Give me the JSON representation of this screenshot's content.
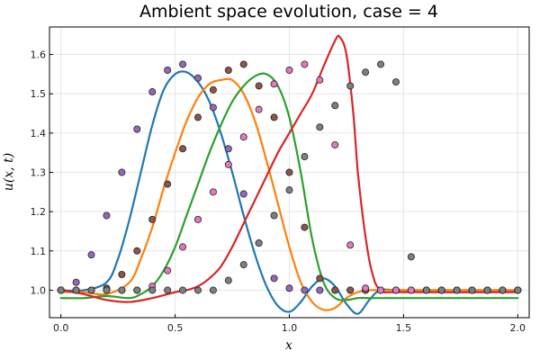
{
  "chart_data": {
    "type": "line",
    "title": "Ambient space evolution, case = 4",
    "xlabel": "x",
    "ylabel": "u(x, t)",
    "xlim": [
      -0.05,
      2.05
    ],
    "ylim": [
      0.93,
      1.67
    ],
    "xticks": [
      "0.0",
      "0.5",
      "1.0",
      "1.5",
      "2.0"
    ],
    "yticks": [
      "1.0",
      "1.1",
      "1.2",
      "1.3",
      "1.4",
      "1.5",
      "1.6"
    ],
    "grid": true,
    "legend": "none",
    "lines": [
      {
        "color": "#1f77b4",
        "x": [
          0.0,
          0.1,
          0.2,
          0.25,
          0.3,
          0.35,
          0.4,
          0.45,
          0.5,
          0.55,
          0.6,
          0.65,
          0.7,
          0.75,
          0.8,
          0.85,
          0.9,
          0.95,
          1.0,
          1.05,
          1.1,
          1.15,
          1.2,
          1.25,
          1.3,
          1.35,
          1.4,
          1.5,
          2.0
        ],
        "y": [
          1.0,
          1.0,
          1.02,
          1.08,
          1.18,
          1.3,
          1.42,
          1.51,
          1.55,
          1.555,
          1.53,
          1.48,
          1.4,
          1.3,
          1.19,
          1.09,
          1.01,
          0.96,
          0.945,
          0.97,
          1.01,
          1.03,
          1.01,
          0.965,
          0.94,
          0.975,
          1.0,
          1.0,
          1.0
        ]
      },
      {
        "color": "#ff7f0e",
        "x": [
          0.0,
          0.1,
          0.2,
          0.3,
          0.35,
          0.4,
          0.45,
          0.5,
          0.55,
          0.6,
          0.65,
          0.7,
          0.75,
          0.8,
          0.85,
          0.9,
          0.95,
          1.0,
          1.05,
          1.1,
          1.15,
          1.2,
          1.25,
          1.3,
          1.35,
          1.4,
          1.5,
          2.0
        ],
        "y": [
          0.995,
          0.995,
          0.99,
          1.02,
          1.08,
          1.16,
          1.26,
          1.35,
          1.43,
          1.49,
          1.525,
          1.535,
          1.535,
          1.5,
          1.43,
          1.33,
          1.22,
          1.11,
          1.02,
          0.97,
          0.95,
          0.955,
          0.98,
          0.995,
          1.0,
          1.0,
          1.0,
          1.0
        ]
      },
      {
        "color": "#2ca02c",
        "x": [
          0.0,
          0.1,
          0.2,
          0.3,
          0.35,
          0.4,
          0.45,
          0.5,
          0.55,
          0.6,
          0.65,
          0.7,
          0.75,
          0.8,
          0.85,
          0.9,
          0.95,
          1.0,
          1.05,
          1.1,
          1.15,
          1.2,
          1.25,
          1.3,
          1.35,
          1.4,
          1.5,
          2.0
        ],
        "y": [
          0.98,
          0.98,
          0.985,
          0.98,
          0.99,
          1.01,
          1.05,
          1.11,
          1.19,
          1.27,
          1.35,
          1.42,
          1.48,
          1.52,
          1.545,
          1.55,
          1.52,
          1.44,
          1.3,
          1.13,
          1.02,
          0.98,
          0.975,
          0.98,
          0.98,
          0.98,
          0.98,
          0.98
        ]
      },
      {
        "color": "#d62728",
        "x": [
          0.0,
          0.1,
          0.2,
          0.3,
          0.4,
          0.5,
          0.55,
          0.6,
          0.65,
          0.7,
          0.75,
          0.8,
          0.85,
          0.9,
          0.95,
          1.0,
          1.05,
          1.1,
          1.15,
          1.2,
          1.22,
          1.25,
          1.28,
          1.3,
          1.33,
          1.36,
          1.4,
          1.5,
          2.0
        ],
        "y": [
          1.0,
          0.99,
          0.975,
          0.97,
          0.98,
          0.995,
          1.0,
          1.01,
          1.03,
          1.06,
          1.11,
          1.17,
          1.23,
          1.29,
          1.35,
          1.4,
          1.45,
          1.5,
          1.57,
          1.635,
          1.645,
          1.6,
          1.45,
          1.3,
          1.15,
          1.05,
          1.0,
          0.995,
          0.995
        ]
      }
    ],
    "scatter": [
      {
        "color": "#9467bd",
        "x": [
          0.0,
          0.0667,
          0.1333,
          0.2,
          0.2667,
          0.3333,
          0.4,
          0.4667,
          0.5333,
          0.6,
          0.6667,
          0.7333,
          0.8,
          0.8667,
          0.9333,
          1.0,
          1.0667,
          1.1333,
          1.2,
          1.2667,
          1.3333,
          1.4,
          1.4667,
          1.5333,
          1.6,
          1.6667,
          1.7333,
          1.8,
          1.8667,
          1.9333,
          2.0
        ],
        "y": [
          1.0,
          1.02,
          1.09,
          1.19,
          1.3,
          1.41,
          1.505,
          1.56,
          1.575,
          1.54,
          1.465,
          1.36,
          1.245,
          1.12,
          1.03,
          1.005,
          1.0,
          1.0,
          1.0,
          1.0,
          1.0,
          1.0,
          1.0,
          1.0,
          1.0,
          1.0,
          1.0,
          1.0,
          1.0,
          1.0,
          1.0
        ]
      },
      {
        "color": "#8c564b",
        "x": [
          0.0,
          0.0667,
          0.1333,
          0.2,
          0.2667,
          0.3333,
          0.4,
          0.4667,
          0.5333,
          0.6,
          0.6667,
          0.7333,
          0.8,
          0.8667,
          0.9333,
          1.0,
          1.0667,
          1.1333,
          1.2,
          1.2667,
          1.3333,
          1.4,
          1.4667,
          1.5333,
          1.6,
          1.6667,
          1.7333,
          1.8,
          1.8667,
          1.9333,
          2.0
        ],
        "y": [
          1.0,
          1.0,
          1.0,
          1.005,
          1.04,
          1.1,
          1.18,
          1.27,
          1.36,
          1.44,
          1.51,
          1.56,
          1.575,
          1.52,
          1.44,
          1.3,
          1.16,
          1.03,
          1.0,
          1.0,
          1.0,
          1.0,
          1.0,
          1.0,
          1.0,
          1.0,
          1.0,
          1.0,
          1.0,
          1.0,
          1.0
        ]
      },
      {
        "color": "#e377c2",
        "x": [
          0.0,
          0.0667,
          0.1333,
          0.2,
          0.2667,
          0.3333,
          0.4,
          0.4667,
          0.5333,
          0.6,
          0.6667,
          0.7333,
          0.8,
          0.8667,
          0.9333,
          1.0,
          1.0667,
          1.1333,
          1.2,
          1.2667,
          1.3333,
          1.4,
          1.4667,
          1.5333,
          1.6,
          1.6667,
          1.7333,
          1.8,
          1.8667,
          1.9333,
          2.0
        ],
        "y": [
          1.0,
          1.0,
          1.0,
          1.0,
          1.0,
          1.0,
          1.01,
          1.05,
          1.11,
          1.18,
          1.25,
          1.32,
          1.39,
          1.46,
          1.525,
          1.56,
          1.575,
          1.535,
          1.37,
          1.115,
          1.005,
          1.0,
          1.0,
          1.0,
          1.0,
          1.0,
          1.0,
          1.0,
          1.0,
          1.0,
          1.0
        ]
      },
      {
        "color": "#7f7f7f",
        "x": [
          0.0,
          0.0667,
          0.1333,
          0.2,
          0.2667,
          0.3333,
          0.4,
          0.4667,
          0.5333,
          0.6,
          0.6667,
          0.7333,
          0.8,
          0.8667,
          0.9333,
          1.0,
          1.0667,
          1.1333,
          1.2,
          1.2667,
          1.3333,
          1.4,
          1.4667,
          1.5333,
          1.6,
          1.6667,
          1.7333,
          1.8,
          1.8667,
          1.9333,
          2.0
        ],
        "y": [
          1.0,
          1.0,
          1.0,
          1.0,
          1.0,
          1.0,
          1.0,
          1.0,
          1.0,
          1.0,
          1.0,
          1.025,
          1.065,
          1.12,
          1.19,
          1.255,
          1.34,
          1.415,
          1.47,
          1.52,
          1.555,
          1.575,
          1.53,
          1.085,
          1.0,
          1.0,
          1.0,
          1.0,
          1.0,
          1.0,
          1.0
        ]
      }
    ]
  }
}
